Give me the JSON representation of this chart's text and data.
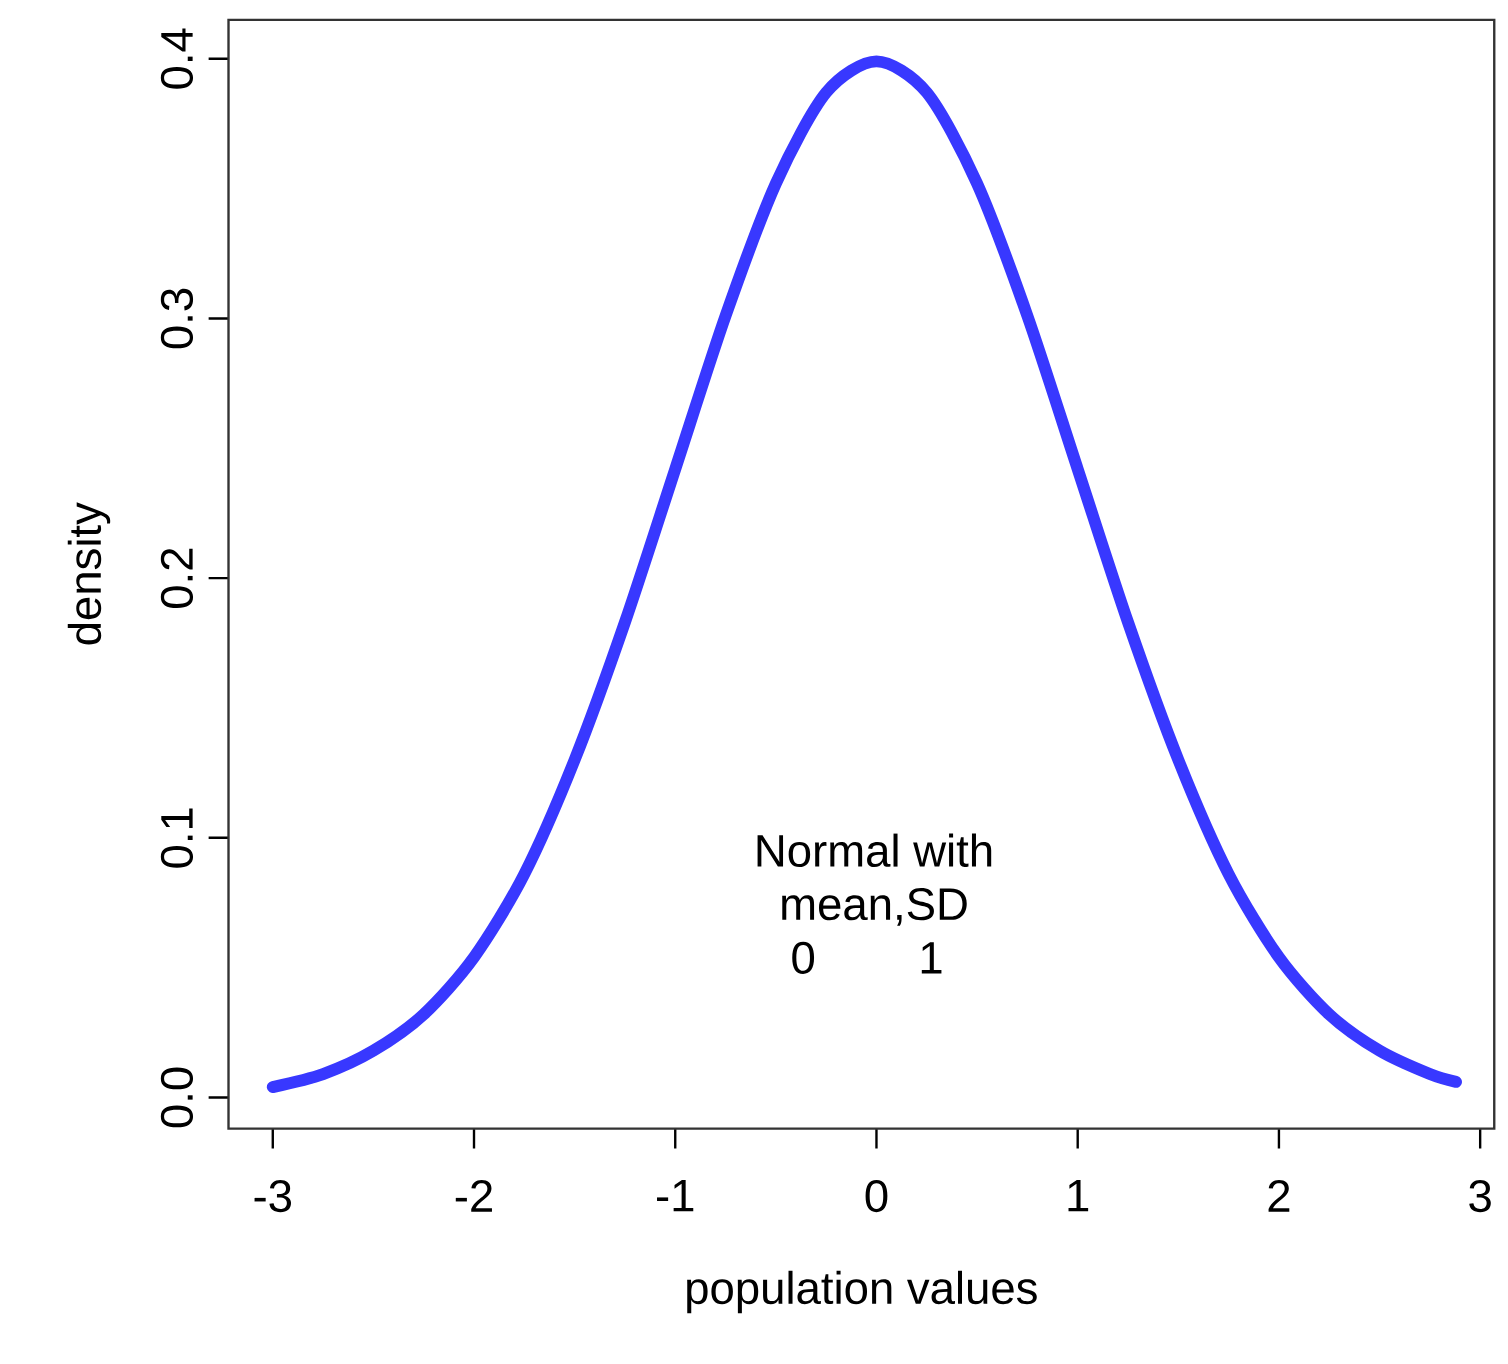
{
  "chart_data": {
    "type": "line",
    "xlabel": "population values",
    "ylabel": "density",
    "x": [
      -3,
      -2.75,
      -2.5,
      -2.25,
      -2,
      -1.75,
      -1.5,
      -1.25,
      -1,
      -0.75,
      -0.5,
      -0.25,
      0,
      0.25,
      0.5,
      0.75,
      1,
      1.25,
      1.5,
      1.75,
      2,
      2.25,
      2.5,
      2.75,
      2.88
    ],
    "series": [
      {
        "color": "#3838ff",
        "values": [
          0.004,
          0.009,
          0.018,
          0.032,
          0.054,
          0.086,
          0.13,
          0.183,
          0.242,
          0.301,
          0.352,
          0.387,
          0.399,
          0.387,
          0.352,
          0.301,
          0.242,
          0.183,
          0.13,
          0.086,
          0.054,
          0.032,
          0.018,
          0.009,
          0.006
        ]
      }
    ],
    "xlim": [
      -3.22,
      3.07
    ],
    "ylim": [
      -0.012,
      0.415
    ],
    "xticks": [
      -3,
      -2,
      -1,
      0,
      1,
      2,
      3
    ],
    "yticks": [
      {
        "value": 0,
        "label": "0.0"
      },
      {
        "value": 0.1,
        "label": "0.1"
      },
      {
        "value": 0.2,
        "label": "0.2"
      },
      {
        "value": 0.3,
        "label": "0.3"
      },
      {
        "value": 0.4,
        "label": "0.4"
      }
    ],
    "grid": false,
    "marker": "none",
    "line_style": "solid",
    "annotations": [
      "Normal with",
      "mean,SD",
      "0",
      "1"
    ]
  }
}
